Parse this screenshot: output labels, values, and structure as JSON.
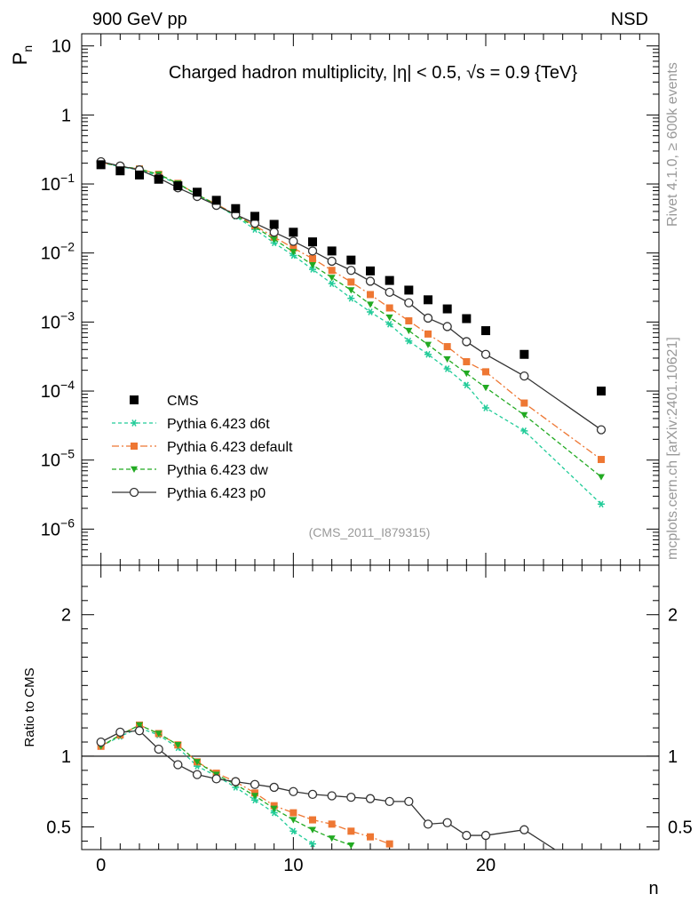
{
  "header": {
    "left": "900 GeV pp",
    "right": "NSD"
  },
  "side": {
    "rivet": "Rivet 4.1.0, ≥ 600k events",
    "mcplots": "mcplots.cern.ch [arXiv:2401.10621]"
  },
  "chart_data": {
    "type": "scatter",
    "title": "Charged hadron multiplicity, |η| < 0.5, √s = 0.9 {TeV}",
    "tag": "(CMS_2011_I879315)",
    "xlabel": "n",
    "ylabel": "Pn",
    "ylabel_main": "P",
    "ylabel_sub": "n",
    "ratio_ylabel": "Ratio to CMS",
    "xlim": [
      -1,
      29
    ],
    "ylim": [
      3e-07,
      15
    ],
    "ratio_ylim": [
      0.34,
      2.35
    ],
    "x_ticks": [
      0,
      10,
      20
    ],
    "x_tick_labels": [
      "0",
      "10",
      "20"
    ],
    "y_ticks": [
      {
        "v": 10,
        "m": "10",
        "e": ""
      },
      {
        "v": 1,
        "m": "1",
        "e": ""
      },
      {
        "v": 0.1,
        "m": "10",
        "e": "−1"
      },
      {
        "v": 0.01,
        "m": "10",
        "e": "−2"
      },
      {
        "v": 0.001,
        "m": "10",
        "e": "−3"
      },
      {
        "v": 0.0001,
        "m": "10",
        "e": "−4"
      },
      {
        "v": 1e-05,
        "m": "10",
        "e": "−5"
      },
      {
        "v": 1e-06,
        "m": "10",
        "e": "−6"
      }
    ],
    "ratio_ticks": [
      0.5,
      1,
      2
    ],
    "ratio_tick_labels": [
      "0.5",
      "1",
      "2"
    ],
    "legend_position": "lower-left",
    "series": [
      {
        "name": "CMS",
        "kind": "data",
        "color": "#000000",
        "marker": "square",
        "x": [
          0,
          1,
          2,
          3,
          4,
          5,
          6,
          7,
          8,
          9,
          10,
          11,
          12,
          13,
          14,
          15,
          16,
          17,
          18,
          19,
          20,
          22,
          26
        ],
        "y": [
          0.19,
          0.155,
          0.135,
          0.117,
          0.094,
          0.076,
          0.058,
          0.044,
          0.034,
          0.026,
          0.02,
          0.0145,
          0.0107,
          0.0079,
          0.0055,
          0.004,
          0.0029,
          0.0021,
          0.00155,
          0.00112,
          0.00075,
          0.00034,
          0.0001
        ]
      },
      {
        "name": "Pythia 6.423 d6t",
        "kind": "mc",
        "color": "#22cc99",
        "marker": "star",
        "dash": "4,3",
        "x": [
          0,
          1,
          2,
          3,
          4,
          5,
          6,
          7,
          8,
          9,
          10,
          11,
          12,
          13,
          14,
          15,
          16,
          17,
          18,
          19,
          20,
          22,
          26
        ],
        "y": [
          0.205,
          0.177,
          0.16,
          0.132,
          0.1,
          0.07,
          0.05,
          0.034,
          0.022,
          0.014,
          0.0092,
          0.0058,
          0.0036,
          0.0022,
          0.0014,
          0.00093,
          0.00053,
          0.00034,
          0.00021,
          0.000122,
          5.7e-05,
          2.65e-05,
          2.3e-06
        ]
      },
      {
        "name": "Pythia 6.423 default",
        "kind": "mc",
        "color": "#ee7733",
        "marker": "square",
        "dash": "8,3,2,3",
        "x": [
          0,
          1,
          2,
          3,
          4,
          5,
          6,
          7,
          8,
          9,
          10,
          11,
          12,
          13,
          14,
          15,
          16,
          17,
          18,
          19,
          20,
          22,
          26
        ],
        "y": [
          0.205,
          0.18,
          0.165,
          0.138,
          0.102,
          0.07,
          0.051,
          0.036,
          0.025,
          0.017,
          0.0118,
          0.0083,
          0.0056,
          0.0038,
          0.0025,
          0.0016,
          0.00104,
          0.00067,
          0.00044,
          0.000266,
          0.00019,
          6.7e-05,
          1.02e-05
        ]
      },
      {
        "name": "Pythia 6.423 dw",
        "kind": "mc",
        "color": "#22aa22",
        "marker": "triangle-down",
        "dash": "5,3",
        "x": [
          0,
          1,
          2,
          3,
          4,
          5,
          6,
          7,
          8,
          9,
          10,
          11,
          12,
          13,
          14,
          15,
          16,
          17,
          18,
          19,
          20,
          22,
          26
        ],
        "y": [
          0.205,
          0.18,
          0.165,
          0.138,
          0.102,
          0.07,
          0.05,
          0.035,
          0.024,
          0.0158,
          0.0104,
          0.0067,
          0.0044,
          0.0029,
          0.0018,
          0.00117,
          0.00075,
          0.00047,
          0.00029,
          0.00018,
          0.000112,
          4.5e-05,
          5.7e-06
        ]
      },
      {
        "name": "Pythia 6.423 p0",
        "kind": "mc",
        "color": "#333333",
        "marker": "circle",
        "dash": "",
        "x": [
          0,
          1,
          2,
          3,
          4,
          5,
          6,
          7,
          8,
          9,
          10,
          11,
          12,
          13,
          14,
          15,
          16,
          17,
          18,
          19,
          20,
          22,
          26
        ],
        "y": [
          0.21,
          0.182,
          0.16,
          0.122,
          0.088,
          0.066,
          0.049,
          0.036,
          0.027,
          0.02,
          0.0148,
          0.0107,
          0.0076,
          0.0056,
          0.0039,
          0.0027,
          0.0019,
          0.00114,
          0.00086,
          0.00052,
          0.00034,
          0.000165,
          2.75e-05
        ]
      }
    ],
    "ratio_series": [
      {
        "name": "Pythia 6.423 d6t",
        "x": [
          0,
          1,
          2,
          3,
          4,
          5,
          6,
          7,
          8,
          9,
          10,
          11
        ],
        "y": [
          1.07,
          1.14,
          1.2,
          1.15,
          1.06,
          0.93,
          0.86,
          0.78,
          0.69,
          0.6,
          0.47,
          0.38
        ]
      },
      {
        "name": "Pythia 6.423 default",
        "x": [
          0,
          1,
          2,
          3,
          4,
          5,
          6,
          7,
          8,
          9,
          10,
          11,
          12,
          13,
          14,
          15
        ],
        "y": [
          1.07,
          1.15,
          1.22,
          1.16,
          1.08,
          0.96,
          0.88,
          0.82,
          0.74,
          0.65,
          0.6,
          0.55,
          0.52,
          0.47,
          0.43,
          0.38
        ]
      },
      {
        "name": "Pythia 6.423 dw",
        "x": [
          0,
          1,
          2,
          3,
          4,
          5,
          6,
          7,
          8,
          9,
          10,
          11,
          12,
          13
        ],
        "y": [
          1.07,
          1.15,
          1.22,
          1.16,
          1.08,
          0.96,
          0.87,
          0.8,
          0.72,
          0.63,
          0.55,
          0.48,
          0.42,
          0.37
        ]
      },
      {
        "name": "Pythia 6.423 p0",
        "x": [
          0,
          1,
          2,
          3,
          4,
          5,
          6,
          7,
          8,
          9,
          10,
          11,
          12,
          13,
          14,
          15,
          16,
          17,
          18,
          19,
          20,
          22,
          23.6
        ],
        "y": [
          1.1,
          1.17,
          1.18,
          1.05,
          0.94,
          0.87,
          0.84,
          0.82,
          0.8,
          0.78,
          0.75,
          0.73,
          0.72,
          0.71,
          0.7,
          0.68,
          0.68,
          0.52,
          0.53,
          0.44,
          0.44,
          0.48,
          0.34
        ]
      }
    ]
  }
}
